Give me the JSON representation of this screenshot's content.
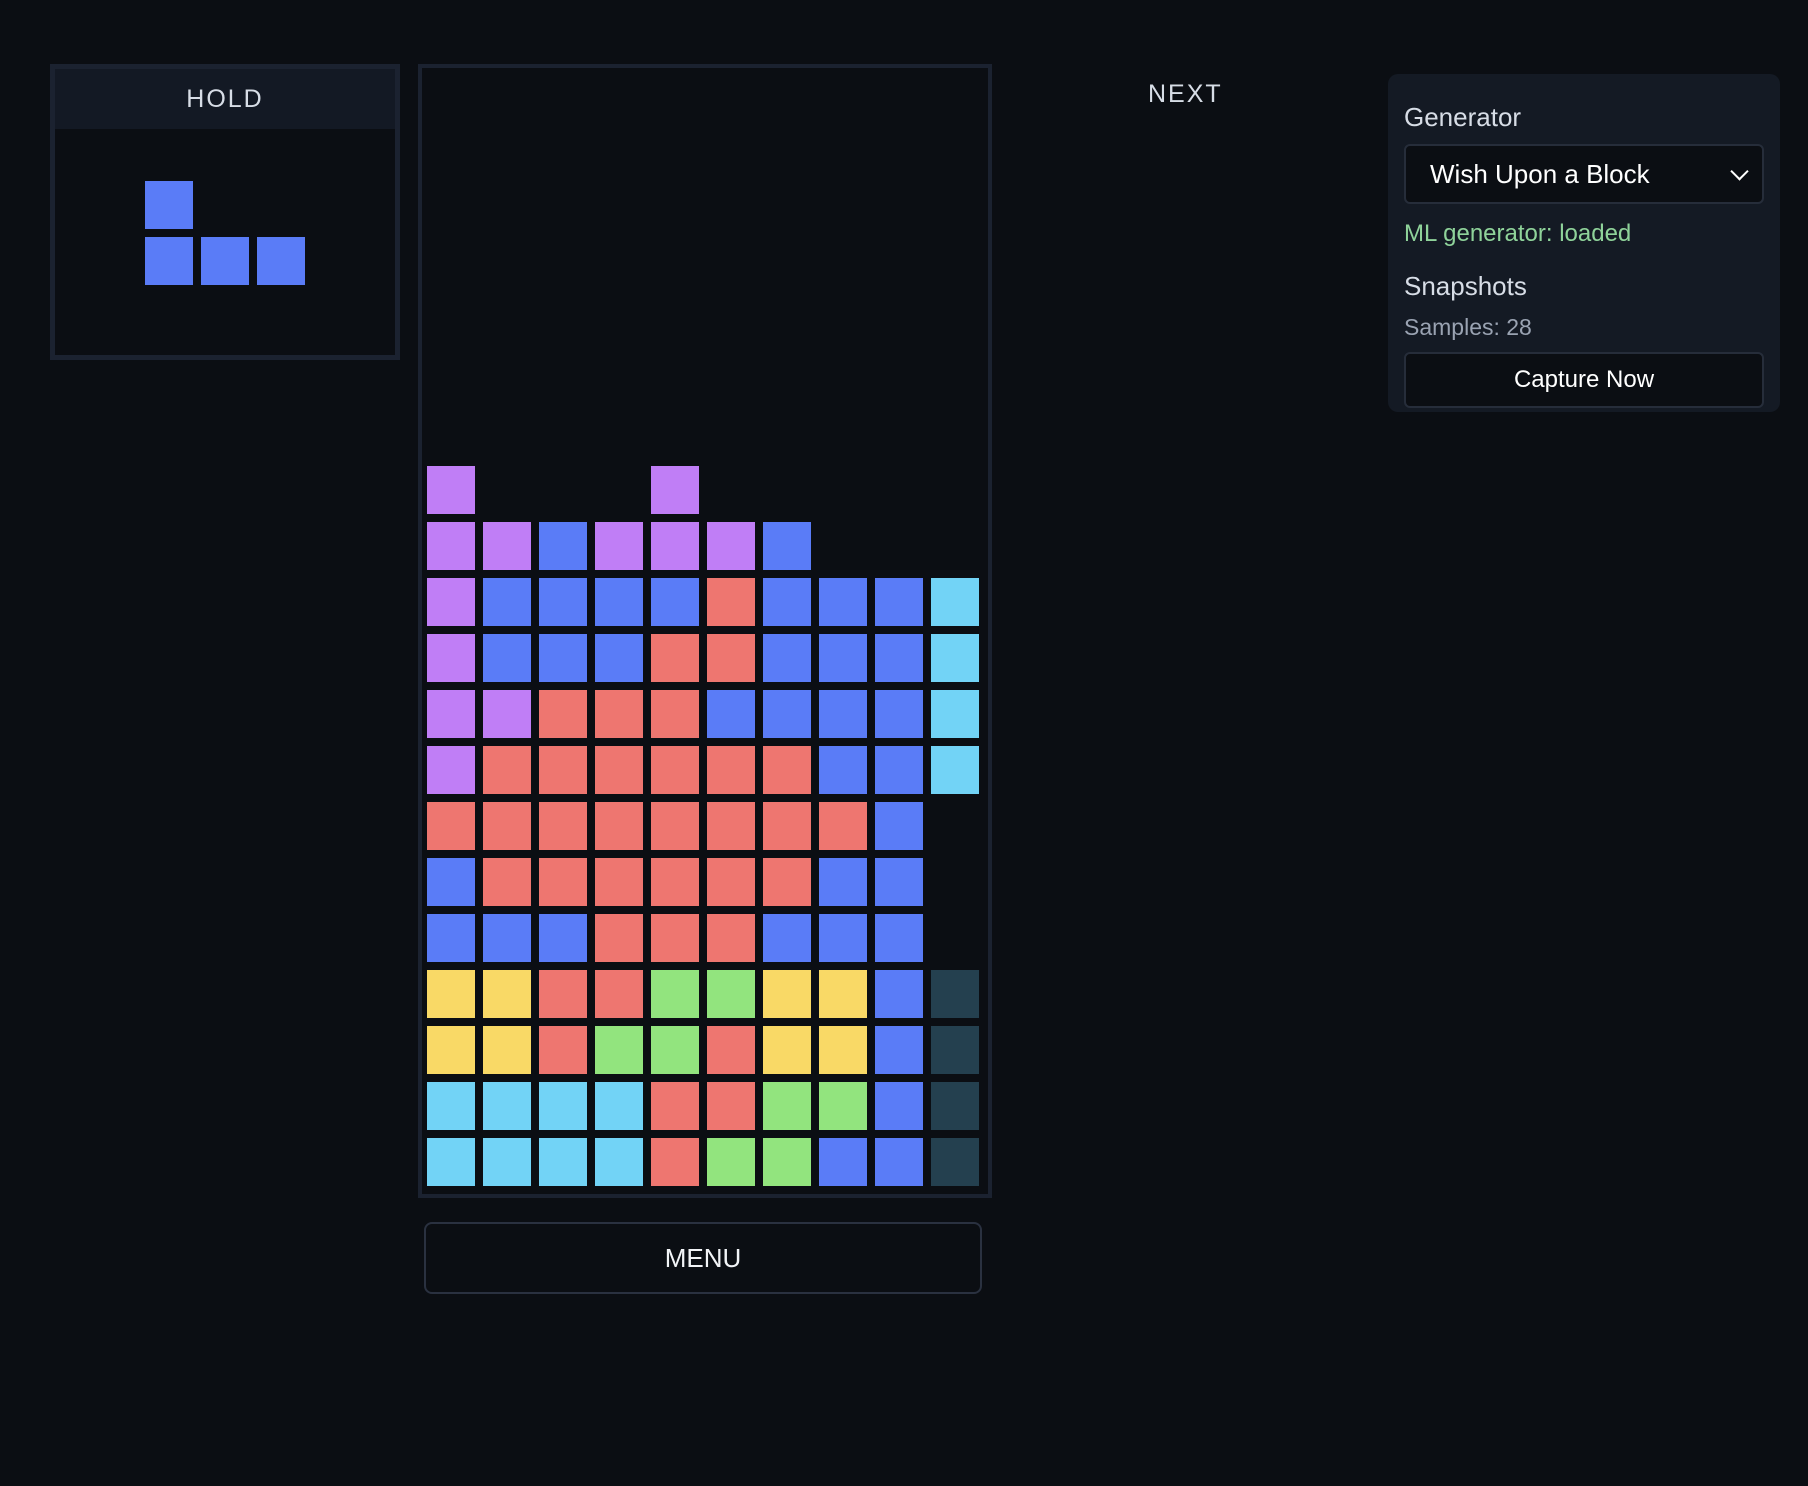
{
  "hold": {
    "title": "HOLD",
    "piece_color": "#5a7cf7",
    "piece_cells": [
      [
        0,
        0
      ],
      [
        0,
        1
      ],
      [
        1,
        1
      ],
      [
        2,
        1
      ]
    ]
  },
  "next": {
    "title": "NEXT"
  },
  "menu": {
    "label": "MENU"
  },
  "side_panel": {
    "generator_label": "Generator",
    "generator_selected": "Wish Upon a Block",
    "ml_status": "ML generator: loaded",
    "snapshots_label": "Snapshots",
    "samples_text": "Samples: 28",
    "capture_label": "Capture Now"
  },
  "board": {
    "columns": 10,
    "rows": 20,
    "colors": {
      "P": "#c07ef6",
      "B": "#5a7cf7",
      "C": "#72d3f6",
      "R": "#ee7670",
      "Y": "#f9d966",
      "G": "#92e47e",
      "D": "#24404f"
    },
    "grid": [
      "..........",
      "..........",
      "..........",
      "..........",
      "..........",
      "..........",
      "..........",
      "P...P.....",
      "PPBPPPB...",
      "PBBBBRBBBC",
      "PBBBRRBBBC",
      "PPRRRBBBBC",
      "PRRRRRRBBC",
      "RRRRRRRRB.",
      "BRRRRRRBB.",
      "BBBRRRBBB.",
      "YYRRGGYYBD",
      "YYRGGRYYBD",
      "CCCCRRGGBD",
      "CCCCRGGBBD"
    ]
  }
}
